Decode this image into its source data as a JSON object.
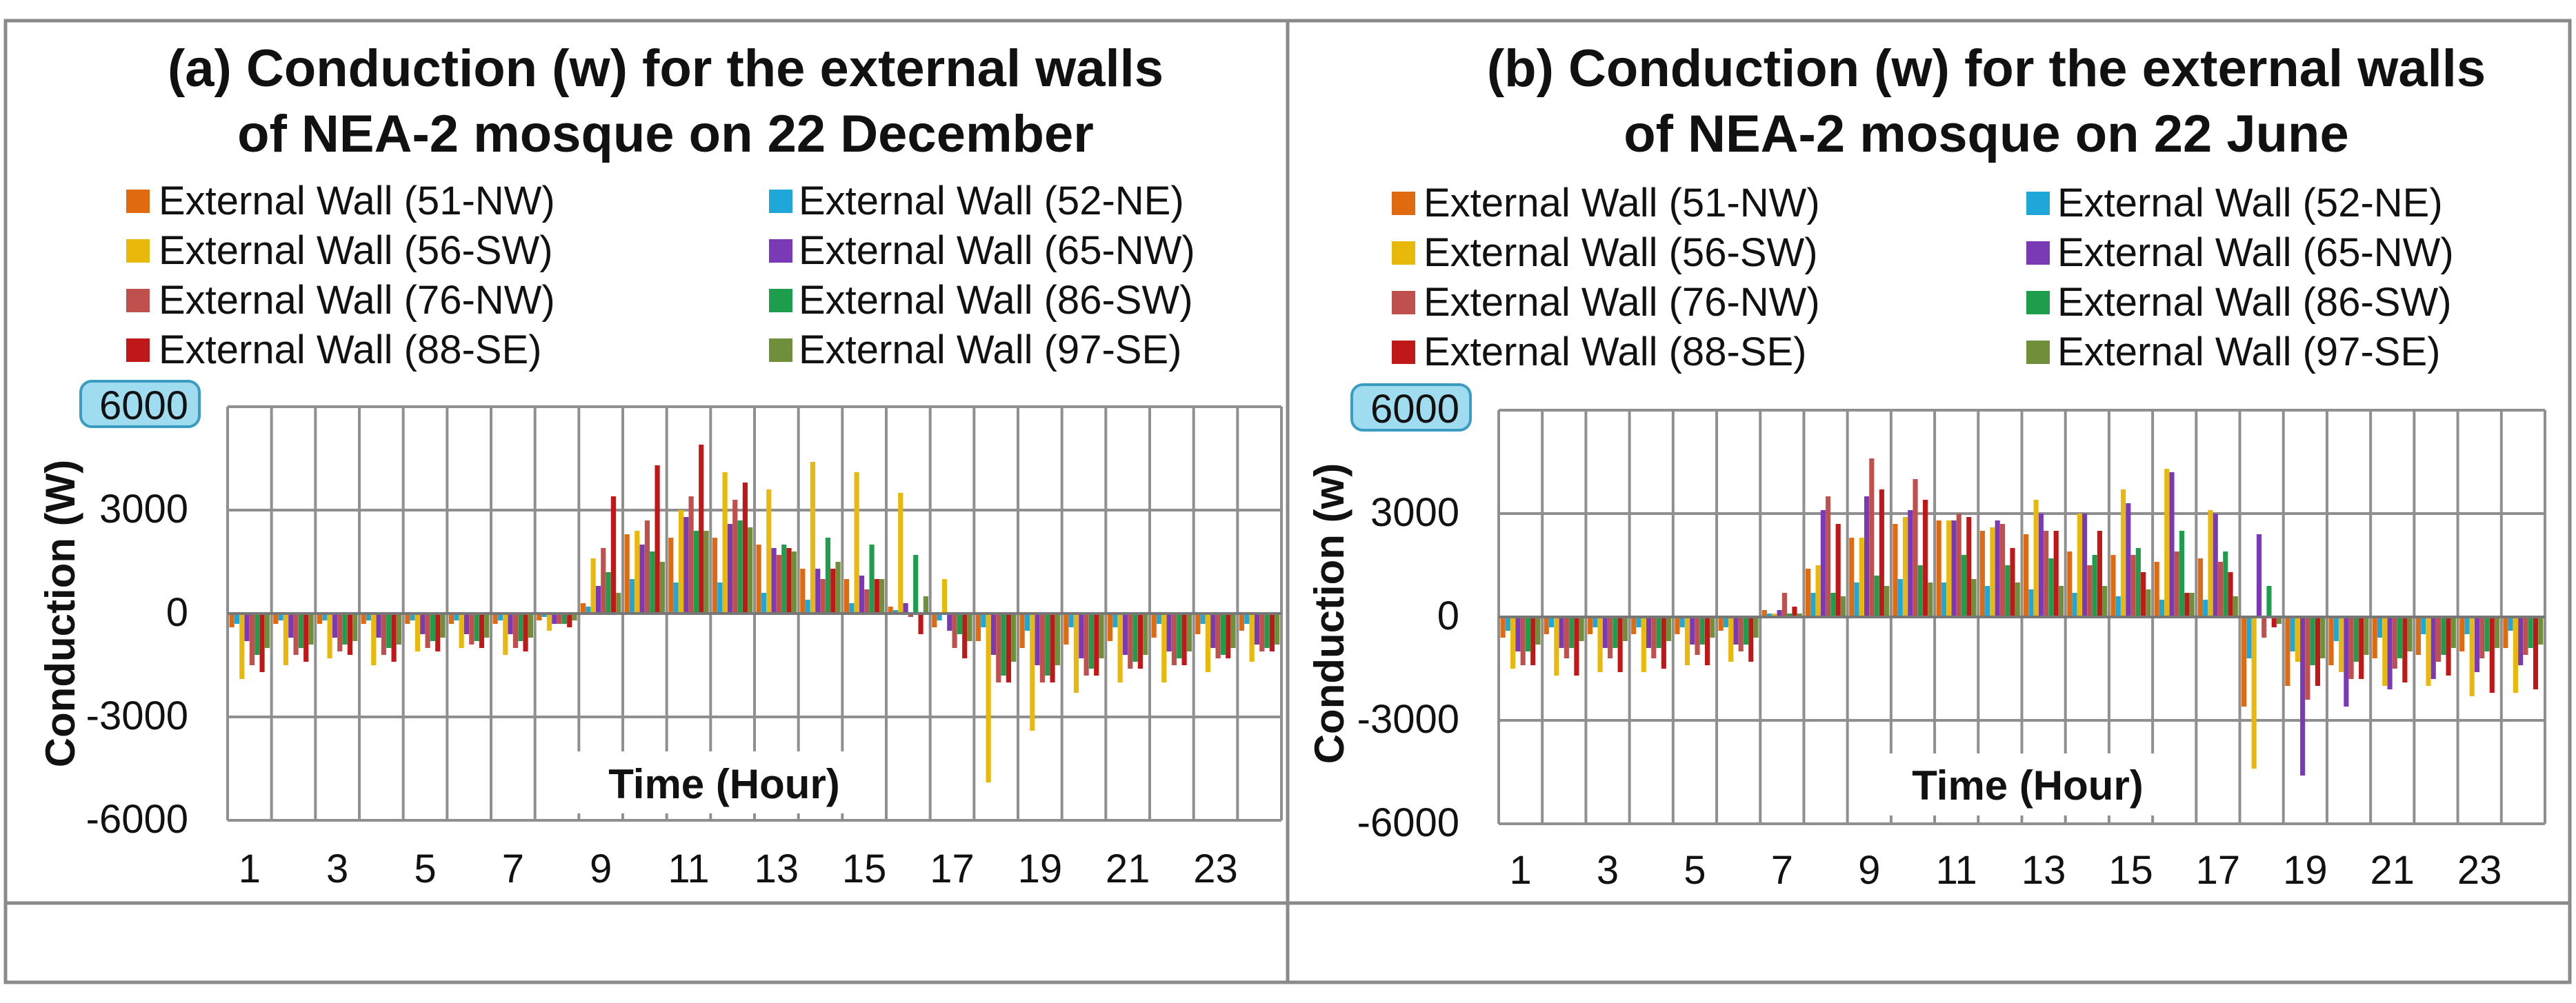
{
  "colors": {
    "frame": "#8a8a8a",
    "grid": "#8f8f8f",
    "axis": "#777777",
    "series": [
      "#e06a10",
      "#1ea7d8",
      "#e8b90a",
      "#7a3ab5",
      "#c0504d",
      "#1e9e4d",
      "#c01818",
      "#6f8f3a"
    ],
    "badge_fill": "#9fdcf0",
    "badge_stroke": "#3a9cc0"
  },
  "chart_data": [
    {
      "type": "bar",
      "title_line1": "(a) Conduction (w) for the external walls",
      "title_line2": "of NEA-2 mosque on 22 December",
      "xlabel": "Time (Hour)",
      "ylabel": "Conduction (W)",
      "ylim": [
        -6000,
        6000
      ],
      "yticks": [
        "6000",
        "3000",
        "0",
        "-3000",
        "-6000"
      ],
      "xticks": [
        "1",
        "3",
        "5",
        "7",
        "9",
        "11",
        "13",
        "15",
        "17",
        "19",
        "21",
        "23"
      ],
      "categories": [
        1,
        2,
        3,
        4,
        5,
        6,
        7,
        8,
        9,
        10,
        11,
        12,
        13,
        14,
        15,
        16,
        17,
        18,
        19,
        20,
        21,
        22,
        23,
        24
      ],
      "legend": [
        "External Wall (51-NW)",
        "External Wall (52-NE)",
        "External Wall (56-SW)",
        "External Wall (65-NW)",
        "External Wall (76-NW)",
        "External Wall (86-SW)",
        "External Wall (88-SE)",
        "External Wall (97-SE)"
      ],
      "series": [
        {
          "name": "External Wall (51-NW)",
          "values": [
            -400,
            -300,
            -300,
            -300,
            -300,
            -300,
            -300,
            -200,
            300,
            2300,
            2200,
            2200,
            2000,
            1300,
            1000,
            200,
            -400,
            -800,
            -1000,
            -900,
            -800,
            -700,
            -600,
            -500
          ]
        },
        {
          "name": "External Wall (52-NE)",
          "values": [
            -300,
            -200,
            -200,
            -200,
            -200,
            -200,
            -200,
            -100,
            200,
            1000,
            900,
            900,
            600,
            400,
            300,
            100,
            -200,
            -400,
            -500,
            -400,
            -400,
            -300,
            -300,
            -300
          ]
        },
        {
          "name": "External Wall (56-SW)",
          "values": [
            -1900,
            -1500,
            -1300,
            -1500,
            -1100,
            -1000,
            -1200,
            -500,
            1600,
            2400,
            3000,
            4100,
            3600,
            4400,
            4100,
            3500,
            1000,
            -4900,
            -3400,
            -2300,
            -2000,
            -2000,
            -1700,
            -1400
          ]
        },
        {
          "name": "External Wall (65-NW)",
          "values": [
            -800,
            -700,
            -700,
            -700,
            -600,
            -600,
            -600,
            -300,
            800,
            2000,
            2800,
            2600,
            1900,
            1300,
            1100,
            300,
            -500,
            -1200,
            -1500,
            -1300,
            -1200,
            -1100,
            -1000,
            -900
          ]
        },
        {
          "name": "External Wall (76-NW)",
          "values": [
            -1500,
            -1200,
            -1100,
            -1200,
            -1000,
            -900,
            -1000,
            -300,
            1900,
            2700,
            3400,
            3300,
            1700,
            1000,
            700,
            -100,
            -1000,
            -2000,
            -2000,
            -1800,
            -1600,
            -1500,
            -1300,
            -1100
          ]
        },
        {
          "name": "External Wall (86-SW)",
          "values": [
            -1200,
            -1000,
            -900,
            -1000,
            -800,
            -800,
            -800,
            -300,
            1200,
            1800,
            2400,
            2700,
            2000,
            2200,
            2000,
            1700,
            -600,
            -1800,
            -1800,
            -1600,
            -1400,
            -1300,
            -1200,
            -1000
          ]
        },
        {
          "name": "External Wall (88-SE)",
          "values": [
            -1700,
            -1400,
            -1200,
            -1400,
            -1100,
            -1000,
            -1100,
            -400,
            3400,
            4300,
            4900,
            3800,
            1900,
            1300,
            1000,
            -600,
            -1300,
            -2000,
            -2000,
            -1800,
            -1600,
            -1500,
            -1300,
            -1100
          ]
        },
        {
          "name": "External Wall (97-SE)",
          "values": [
            -1000,
            -900,
            -800,
            -900,
            -700,
            -700,
            -700,
            -200,
            600,
            1500,
            2400,
            2500,
            1800,
            1500,
            1000,
            500,
            -800,
            -1400,
            -1500,
            -1300,
            -1200,
            -1100,
            -1000,
            -900
          ]
        }
      ]
    },
    {
      "type": "bar",
      "title_line1": "(b) Conduction (w) for the external walls",
      "title_line2": "of NEA-2 mosque on 22 June",
      "xlabel": "Time (Hour)",
      "ylabel": "Conduction (w)",
      "ylim": [
        -6000,
        6000
      ],
      "yticks": [
        "6000",
        "3000",
        "0",
        "-3000",
        "-6000"
      ],
      "xticks": [
        "1",
        "3",
        "5",
        "7",
        "9",
        "11",
        "13",
        "15",
        "17",
        "19",
        "21",
        "23"
      ],
      "categories": [
        1,
        2,
        3,
        4,
        5,
        6,
        7,
        8,
        9,
        10,
        11,
        12,
        13,
        14,
        15,
        16,
        17,
        18,
        19,
        20,
        21,
        22,
        23,
        24
      ],
      "legend": [
        "External Wall (51-NW)",
        "External Wall (52-NE)",
        "External Wall (56-SW)",
        "External Wall (65-NW)",
        "External Wall (76-NW)",
        "External Wall (86-SW)",
        "External Wall (88-SE)",
        "External Wall (97-SE)"
      ],
      "series": [
        {
          "name": "External Wall (51-NW)",
          "values": [
            -600,
            -500,
            -500,
            -500,
            -500,
            -400,
            200,
            1400,
            2300,
            2700,
            2800,
            2500,
            2400,
            1900,
            1800,
            1600,
            1700,
            -2600,
            -2000,
            -1400,
            -1200,
            -1100,
            -1000,
            -900
          ]
        },
        {
          "name": "External Wall (52-NE)",
          "values": [
            -400,
            -300,
            -300,
            -300,
            -300,
            -300,
            100,
            700,
            1000,
            1100,
            1000,
            900,
            800,
            700,
            600,
            500,
            500,
            -1200,
            -1000,
            -700,
            -600,
            -500,
            -500,
            -400
          ]
        },
        {
          "name": "External Wall (56-SW)",
          "values": [
            -1500,
            -1700,
            -1600,
            -1600,
            -1400,
            -1300,
            100,
            1500,
            2300,
            2900,
            2800,
            2600,
            3400,
            3000,
            3700,
            4300,
            3100,
            -4400,
            -1300,
            -1600,
            -2000,
            -2000,
            -2300,
            -2200
          ]
        },
        {
          "name": "External Wall (65-NW)",
          "values": [
            -1000,
            -900,
            -900,
            -900,
            -800,
            -800,
            200,
            3100,
            3500,
            3100,
            2800,
            2800,
            3000,
            3000,
            3300,
            4200,
            3000,
            2400,
            -4600,
            -2600,
            -2100,
            -1800,
            -1600,
            -1400
          ]
        },
        {
          "name": "External Wall (76-NW)",
          "values": [
            -1400,
            -1200,
            -1200,
            -1200,
            -1100,
            -1000,
            700,
            3500,
            4600,
            4000,
            3000,
            2700,
            2500,
            1500,
            1800,
            1900,
            1600,
            -600,
            -2400,
            -1800,
            -1500,
            -1300,
            -1200,
            -1100
          ]
        },
        {
          "name": "External Wall (86-SW)",
          "values": [
            -1000,
            -900,
            -900,
            -900,
            -800,
            -800,
            100,
            700,
            1200,
            1500,
            1800,
            1500,
            1700,
            1800,
            2000,
            2500,
            1900,
            900,
            -1400,
            -1300,
            -1200,
            -1100,
            -1000,
            -900
          ]
        },
        {
          "name": "External Wall (88-SE)",
          "values": [
            -1400,
            -1700,
            -1600,
            -1500,
            -1400,
            -1300,
            300,
            2700,
            3700,
            3400,
            2900,
            2000,
            2500,
            2500,
            1300,
            700,
            1300,
            -300,
            -2000,
            -1800,
            -1900,
            -1700,
            -2200,
            -2100
          ]
        },
        {
          "name": "External Wall (97-SE)",
          "values": [
            -800,
            -700,
            -700,
            -700,
            -600,
            -600,
            100,
            600,
            900,
            1000,
            1100,
            1000,
            900,
            900,
            800,
            700,
            600,
            -200,
            -1200,
            -1100,
            -1000,
            -900,
            -900,
            -800
          ]
        }
      ]
    }
  ]
}
